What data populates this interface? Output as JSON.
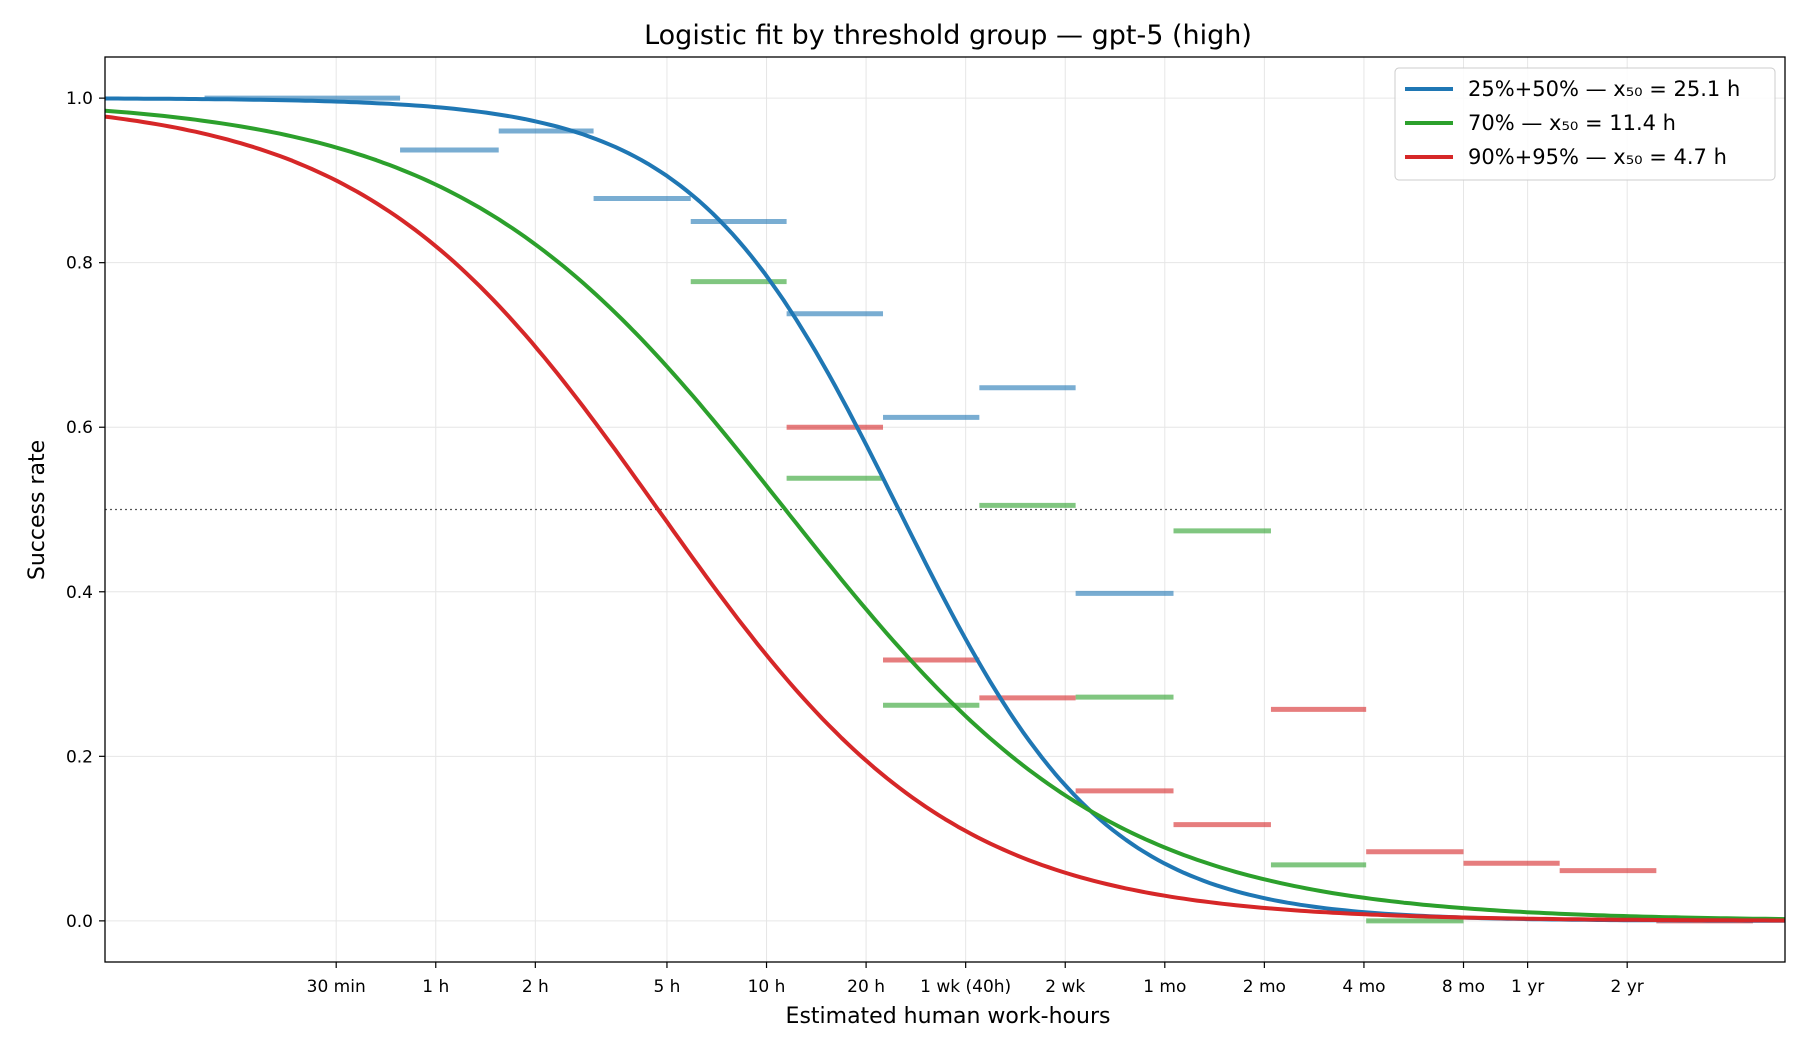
{
  "chart_data": {
    "type": "line",
    "title": "Logistic fit by threshold group — gpt-5 (high)",
    "xlabel": "Estimated human work-hours",
    "ylabel": "Success rate",
    "xscale": "log",
    "xlim": [
      0.1,
      12000
    ],
    "ylim": [
      -0.05,
      1.05
    ],
    "x_ticks": [
      {
        "label": "30 min",
        "hours": 0.5
      },
      {
        "label": "1 h",
        "hours": 1
      },
      {
        "label": "2 h",
        "hours": 2
      },
      {
        "label": "5 h",
        "hours": 5
      },
      {
        "label": "10 h",
        "hours": 10
      },
      {
        "label": "20 h",
        "hours": 20
      },
      {
        "label": "1 wk (40h)",
        "hours": 40
      },
      {
        "label": "2 wk",
        "hours": 80
      },
      {
        "label": "1 mo",
        "hours": 160
      },
      {
        "label": "2 mo",
        "hours": 320
      },
      {
        "label": "4 mo",
        "hours": 640
      },
      {
        "label": "8 mo",
        "hours": 1280
      },
      {
        "label": "1 yr",
        "hours": 2000
      },
      {
        "label": "2 yr",
        "hours": 4000
      }
    ],
    "y_ticks": [
      {
        "label": "0.0",
        "value": 0.0
      },
      {
        "label": "0.2",
        "value": 0.2
      },
      {
        "label": "0.4",
        "value": 0.4
      },
      {
        "label": "0.6",
        "value": 0.6
      },
      {
        "label": "0.8",
        "value": 0.8
      },
      {
        "label": "1.0",
        "value": 1.0
      }
    ],
    "reference_line": {
      "y": 0.5,
      "style": "dotted"
    },
    "grid": true,
    "legend_position": "top-right",
    "series": [
      {
        "name": "25%+50% — x₅₀ = 25.1 h",
        "color": "#1f77b4",
        "x50_hours": 25.1,
        "slope": 1.4,
        "bins": [
          {
            "x_start": 0.2,
            "x_end": 0.78,
            "y": 1.0
          },
          {
            "x_start": 0.78,
            "x_end": 1.55,
            "y": 0.937
          },
          {
            "x_start": 1.55,
            "x_end": 3.0,
            "y": 0.96
          },
          {
            "x_start": 3.0,
            "x_end": 5.9,
            "y": 0.878
          },
          {
            "x_start": 5.9,
            "x_end": 11.5,
            "y": 0.85
          },
          {
            "x_start": 11.5,
            "x_end": 22.5,
            "y": 0.738
          },
          {
            "x_start": 22.5,
            "x_end": 44,
            "y": 0.612
          },
          {
            "x_start": 44,
            "x_end": 86,
            "y": 0.648
          },
          {
            "x_start": 86,
            "x_end": 170,
            "y": 0.398
          }
        ]
      },
      {
        "name": "70% — x₅₀ = 11.4 h",
        "color": "#2ca02c",
        "x50_hours": 11.4,
        "slope": 0.88,
        "bins": [
          {
            "x_start": 5.9,
            "x_end": 11.5,
            "y": 0.777
          },
          {
            "x_start": 11.5,
            "x_end": 22.5,
            "y": 0.538
          },
          {
            "x_start": 22.5,
            "x_end": 44,
            "y": 0.262
          },
          {
            "x_start": 44,
            "x_end": 86,
            "y": 0.505
          },
          {
            "x_start": 86,
            "x_end": 170,
            "y": 0.272
          },
          {
            "x_start": 170,
            "x_end": 335,
            "y": 0.474
          },
          {
            "x_start": 335,
            "x_end": 650,
            "y": 0.068
          },
          {
            "x_start": 650,
            "x_end": 1280,
            "y": 0.0
          }
        ]
      },
      {
        "name": "90%+95% — x₅₀ = 4.7 h",
        "color": "#d62728",
        "x50_hours": 4.7,
        "slope": 0.98,
        "bins": [
          {
            "x_start": 11.5,
            "x_end": 22.5,
            "y": 0.6
          },
          {
            "x_start": 22.5,
            "x_end": 44,
            "y": 0.317
          },
          {
            "x_start": 44,
            "x_end": 86,
            "y": 0.271
          },
          {
            "x_start": 86,
            "x_end": 170,
            "y": 0.158
          },
          {
            "x_start": 170,
            "x_end": 335,
            "y": 0.117
          },
          {
            "x_start": 335,
            "x_end": 650,
            "y": 0.257
          },
          {
            "x_start": 650,
            "x_end": 1280,
            "y": 0.084
          },
          {
            "x_start": 1280,
            "x_end": 2500,
            "y": 0.07
          },
          {
            "x_start": 2500,
            "x_end": 4900,
            "y": 0.061
          },
          {
            "x_start": 4900,
            "x_end": 9600,
            "y": 0.0
          }
        ]
      }
    ]
  }
}
